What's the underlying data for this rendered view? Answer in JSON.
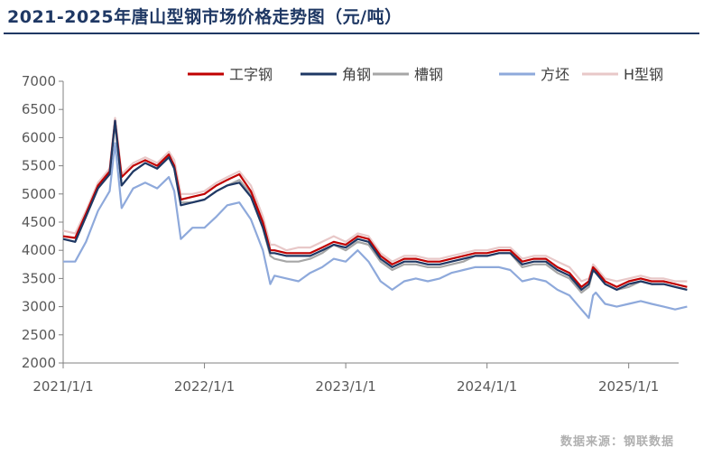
{
  "title": "2021-2025年唐山型钢市场价格走势图（元/吨）",
  "source": "数据来源：钢联数据",
  "chart_data": {
    "type": "line",
    "title": "2021-2025年唐山型钢市场价格走势图（元/吨）",
    "unit": "元/吨",
    "xlabel": "",
    "ylabel": "",
    "ylim": [
      2000,
      7000
    ],
    "yticks": [
      "2000",
      "2500",
      "3000",
      "3500",
      "4000",
      "4500",
      "5000",
      "5500",
      "6000",
      "6500",
      "7000"
    ],
    "xticks": [
      "2021/1/1",
      "2022/1/1",
      "2023/1/1",
      "2024/1/1",
      "2025/1/1"
    ],
    "grid": false,
    "legend_position": "top-right",
    "x": [
      "2021/1/1",
      "2021/2/1",
      "2021/3/1",
      "2021/4/1",
      "2021/5/1",
      "2021/5/15",
      "2021/6/1",
      "2021/7/1",
      "2021/8/1",
      "2021/9/1",
      "2021/10/1",
      "2021/10/15",
      "2021/11/1",
      "2021/12/1",
      "2022/1/1",
      "2022/2/1",
      "2022/3/1",
      "2022/4/1",
      "2022/5/1",
      "2022/6/1",
      "2022/6/20",
      "2022/7/1",
      "2022/8/1",
      "2022/9/1",
      "2022/10/1",
      "2022/11/1",
      "2022/12/1",
      "2023/1/1",
      "2023/2/1",
      "2023/3/1",
      "2023/4/1",
      "2023/5/1",
      "2023/6/1",
      "2023/7/1",
      "2023/8/1",
      "2023/9/1",
      "2023/10/1",
      "2023/11/1",
      "2023/12/1",
      "2024/1/1",
      "2024/2/1",
      "2024/3/1",
      "2024/4/1",
      "2024/5/1",
      "2024/6/1",
      "2024/7/1",
      "2024/8/1",
      "2024/9/1",
      "2024/9/20",
      "2024/10/1",
      "2024/10/8",
      "2024/11/1",
      "2024/12/1",
      "2025/1/1",
      "2025/2/1",
      "2025/3/1",
      "2025/4/1",
      "2025/5/1",
      "2025/6/1"
    ],
    "series": [
      {
        "name": "工字钢",
        "color": "#c00000",
        "values": [
          4250,
          4220,
          4650,
          5150,
          5400,
          6300,
          5300,
          5500,
          5600,
          5500,
          5700,
          5500,
          4900,
          4950,
          5000,
          5150,
          5250,
          5350,
          5050,
          4500,
          4000,
          4000,
          3950,
          3950,
          3950,
          4050,
          4150,
          4100,
          4250,
          4200,
          3900,
          3750,
          3850,
          3850,
          3800,
          3800,
          3850,
          3900,
          3950,
          3950,
          4000,
          4000,
          3800,
          3850,
          3850,
          3700,
          3600,
          3350,
          3450,
          3700,
          3650,
          3450,
          3350,
          3450,
          3500,
          3450,
          3450,
          3400,
          3350
        ]
      },
      {
        "name": "角钢",
        "color": "#1f3864",
        "values": [
          4200,
          4150,
          4600,
          5100,
          5350,
          6300,
          5150,
          5400,
          5550,
          5450,
          5650,
          5450,
          4800,
          4850,
          4900,
          5050,
          5150,
          5200,
          4950,
          4400,
          3950,
          3950,
          3900,
          3900,
          3900,
          4000,
          4100,
          4050,
          4200,
          4150,
          3850,
          3700,
          3800,
          3800,
          3750,
          3750,
          3800,
          3850,
          3900,
          3900,
          3950,
          3950,
          3750,
          3800,
          3800,
          3650,
          3550,
          3300,
          3400,
          3650,
          3600,
          3400,
          3300,
          3400,
          3450,
          3400,
          3400,
          3350,
          3300
        ]
      },
      {
        "name": "槽钢",
        "color": "#a6a6a6",
        "values": [
          4200,
          4150,
          4600,
          5100,
          5350,
          6250,
          5150,
          5400,
          5550,
          5450,
          5650,
          5450,
          4850,
          4850,
          4900,
          5050,
          5150,
          5250,
          5000,
          4400,
          3900,
          3850,
          3800,
          3800,
          3850,
          3950,
          4100,
          4000,
          4150,
          4100,
          3800,
          3650,
          3750,
          3750,
          3700,
          3700,
          3750,
          3800,
          3900,
          3900,
          3950,
          3950,
          3700,
          3750,
          3750,
          3600,
          3500,
          3250,
          3350,
          3650,
          3600,
          3400,
          3300,
          3350,
          3450,
          3400,
          3400,
          3350,
          3300
        ]
      },
      {
        "name": "方坯",
        "color": "#8ea9db",
        "values": [
          3800,
          3800,
          4150,
          4700,
          5050,
          5900,
          4750,
          5100,
          5200,
          5100,
          5300,
          5050,
          4200,
          4400,
          4400,
          4600,
          4800,
          4850,
          4550,
          4000,
          3400,
          3550,
          3500,
          3450,
          3600,
          3700,
          3850,
          3800,
          4000,
          3800,
          3450,
          3300,
          3450,
          3500,
          3450,
          3500,
          3600,
          3650,
          3700,
          3700,
          3700,
          3650,
          3450,
          3500,
          3450,
          3300,
          3200,
          2950,
          2800,
          3200,
          3250,
          3050,
          3000,
          3050,
          3100,
          3050,
          3000,
          2950,
          3000
        ]
      },
      {
        "name": "H型钢",
        "color": "#e8c8c8",
        "values": [
          4350,
          4300,
          4700,
          5200,
          5450,
          6350,
          5350,
          5550,
          5650,
          5550,
          5750,
          5600,
          5000,
          5000,
          5050,
          5200,
          5300,
          5400,
          5150,
          4600,
          4100,
          4100,
          4000,
          4050,
          4050,
          4150,
          4250,
          4150,
          4300,
          4250,
          3950,
          3800,
          3900,
          3900,
          3850,
          3850,
          3900,
          3950,
          4000,
          4000,
          4050,
          4050,
          3850,
          3900,
          3900,
          3800,
          3700,
          3450,
          3500,
          3750,
          3700,
          3500,
          3450,
          3500,
          3550,
          3500,
          3500,
          3450,
          3450
        ]
      }
    ]
  }
}
